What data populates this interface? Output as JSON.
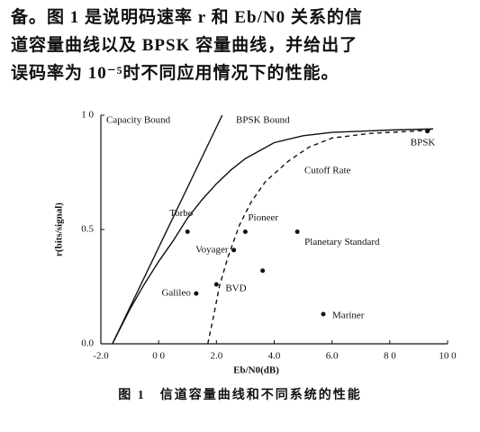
{
  "paragraph": {
    "lines": [
      "备。图 1 是说明码速率 r 和 Eb/N0 关系的信",
      "道容量曲线以及 BPSK 容量曲线，并给出了",
      "误码率为 10⁻⁵时不同应用情况下的性能。"
    ]
  },
  "chart_data": {
    "type": "line",
    "x_label": "Eb/N0(dB)",
    "y_label": "r(bits/signal)",
    "xlim": [
      -2,
      10
    ],
    "ylim": [
      0,
      1
    ],
    "xticks": [
      {
        "value": -2,
        "label": "-2.0"
      },
      {
        "value": 0,
        "label": "0 0"
      },
      {
        "value": 2,
        "label": "2.0"
      },
      {
        "value": 4,
        "label": "4.0"
      },
      {
        "value": 6,
        "label": "6.0"
      },
      {
        "value": 8,
        "label": "8 0"
      },
      {
        "value": 10,
        "label": "10 0"
      }
    ],
    "yticks": [
      {
        "value": 0,
        "label": "0.0"
      },
      {
        "value": 0.5,
        "label": "0.5"
      },
      {
        "value": 1,
        "label": "1 0"
      }
    ],
    "series": [
      {
        "name": "Capacity Bound",
        "color": "#111111",
        "dash": false,
        "x": [
          -1.6,
          2.2
        ],
        "values": [
          0,
          1
        ]
      },
      {
        "name": "BPSK Bound",
        "color": "#111111",
        "dash": false,
        "x": [
          -1.6,
          -1.0,
          -0.5,
          0,
          0.5,
          1,
          1.5,
          2,
          2.5,
          3,
          4,
          5,
          6,
          7,
          8,
          9.5
        ],
        "values": [
          0,
          0.15,
          0.26,
          0.36,
          0.45,
          0.55,
          0.63,
          0.7,
          0.76,
          0.81,
          0.88,
          0.91,
          0.925,
          0.93,
          0.935,
          0.94
        ]
      },
      {
        "name": "Cutoff Rate",
        "color": "#111111",
        "dash": true,
        "x": [
          1.7,
          1.9,
          2.1,
          2.4,
          2.8,
          3.2,
          3.7,
          4.5,
          5.2,
          6,
          7.3,
          9.5
        ],
        "values": [
          0,
          0.12,
          0.25,
          0.38,
          0.52,
          0.62,
          0.71,
          0.8,
          0.86,
          0.9,
          0.92,
          0.935
        ]
      }
    ],
    "points": {
      "labels": [
        "Torbo",
        "Pioneer",
        "Planetary Standard",
        "Voyager",
        null,
        "BVD",
        "Galileo",
        "Mariner",
        "BPSK"
      ],
      "x": [
        1.0,
        3.0,
        4.8,
        2.6,
        3.6,
        2.0,
        1.3,
        5.7,
        9.3
      ],
      "values": [
        0.49,
        0.49,
        0.49,
        0.41,
        0.32,
        0.26,
        0.22,
        0.13,
        0.93
      ]
    }
  },
  "caption": "图 1　信道容量曲线和不同系统的性能"
}
